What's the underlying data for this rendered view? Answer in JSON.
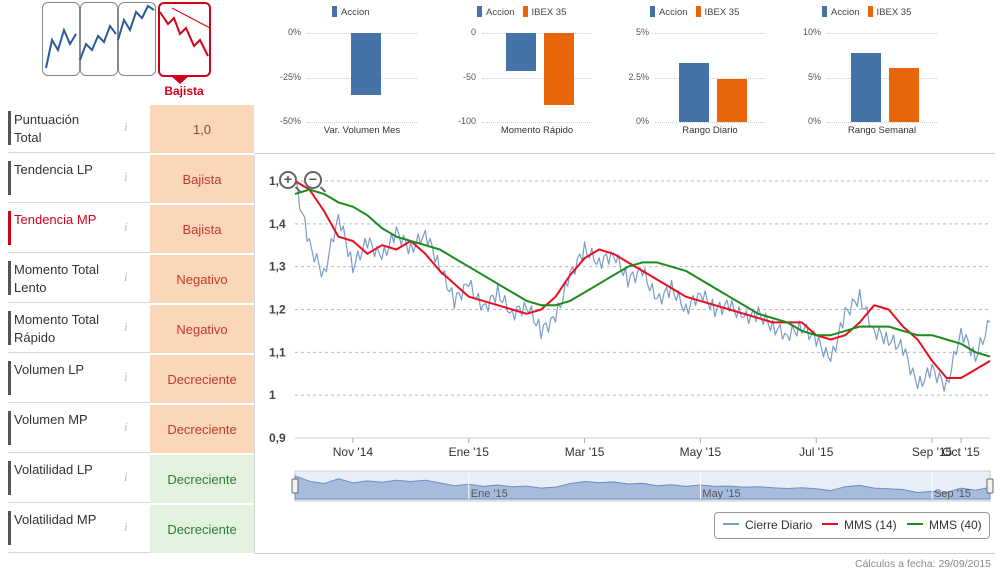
{
  "trend_selector": {
    "selected_label": "Bajista",
    "active_color": "#d0021b"
  },
  "indicators": [
    {
      "label": "Puntuación Total",
      "value": "1,0",
      "color": "orange",
      "highlight": false
    },
    {
      "label": "Tendencia LP",
      "value": "Bajista",
      "color": "orange",
      "highlight": false
    },
    {
      "label": "Tendencia MP",
      "value": "Bajista",
      "color": "orange",
      "highlight": true
    },
    {
      "label": "Momento Total Lento",
      "value": "Negativo",
      "color": "orange",
      "highlight": false
    },
    {
      "label": "Momento Total Rápido",
      "value": "Negativo",
      "color": "orange",
      "highlight": false
    },
    {
      "label": "Volumen LP",
      "value": "Decreciente",
      "color": "orange",
      "highlight": false
    },
    {
      "label": "Volumen MP",
      "value": "Decreciente",
      "color": "orange",
      "highlight": false
    },
    {
      "label": "Volatilidad LP",
      "value": "Decreciente",
      "color": "green",
      "highlight": false
    },
    {
      "label": "Volatilidad MP",
      "value": "Decreciente",
      "color": "green",
      "highlight": false
    }
  ],
  "info_icon": "i",
  "colors": {
    "accion": "#4572a7",
    "ibex": "#e8650c",
    "cierre": "#7b9cc9",
    "mms14": "#e8101f",
    "mms40": "#1a8a1a"
  },
  "chart_data": [
    {
      "type": "bar",
      "title": "",
      "xlabel": "Var. Volumen Mes",
      "series": [
        {
          "name": "Accion",
          "values": [
            -35
          ]
        }
      ],
      "yticks": [
        "0%",
        "-25%",
        "-50%"
      ],
      "ylim": [
        -50,
        0
      ]
    },
    {
      "type": "bar",
      "title": "",
      "xlabel": "Momento Rápido",
      "series": [
        {
          "name": "Accion",
          "values": [
            -43
          ]
        },
        {
          "name": "IBEX 35",
          "values": [
            -81
          ]
        }
      ],
      "yticks": [
        "0",
        "-50",
        "-100"
      ],
      "ylim": [
        -100,
        0
      ]
    },
    {
      "type": "bar",
      "title": "",
      "xlabel": "Rango Diario",
      "series": [
        {
          "name": "Accion",
          "values": [
            3.3
          ]
        },
        {
          "name": "IBEX 35",
          "values": [
            2.4
          ]
        }
      ],
      "yticks": [
        "5%",
        "2.5%",
        "0%"
      ],
      "ylim": [
        0,
        5
      ]
    },
    {
      "type": "bar",
      "title": "",
      "xlabel": "Rango Semanal",
      "series": [
        {
          "name": "Accion",
          "values": [
            7.8
          ]
        },
        {
          "name": "IBEX 35",
          "values": [
            6.1
          ]
        }
      ],
      "yticks": [
        "10%",
        "5%",
        "0%"
      ],
      "ylim": [
        0,
        10
      ]
    },
    {
      "type": "line",
      "title": "",
      "xlabel": "",
      "ylabel": "",
      "ylim": [
        0.9,
        1.5
      ],
      "yticks": [
        "0,9",
        "1",
        "1,1",
        "1,2",
        "1,3",
        "1,4",
        "1,5"
      ],
      "x_tick_labels": [
        "Nov '14",
        "Ene '15",
        "Mar '15",
        "May '15",
        "Jul '15",
        "Sep '15",
        "Oct '15"
      ],
      "x_tick_months": [
        1.0,
        3.0,
        5.0,
        7.0,
        9.0,
        11.0,
        11.5
      ],
      "navigator_labels": [
        "Ene '15",
        "May '15",
        "Sep '15"
      ],
      "navigator_months": [
        3.0,
        7.0,
        11.0
      ],
      "x_range_months": [
        0.0,
        12.0
      ],
      "series": [
        {
          "name": "Cierre Diario",
          "x": [
            0.0,
            0.25,
            0.5,
            0.75,
            1.0,
            1.25,
            1.5,
            1.75,
            2.0,
            2.25,
            2.5,
            2.75,
            3.0,
            3.25,
            3.5,
            3.75,
            4.0,
            4.25,
            4.5,
            4.75,
            5.0,
            5.25,
            5.5,
            5.75,
            6.0,
            6.25,
            6.5,
            6.75,
            7.0,
            7.25,
            7.5,
            7.75,
            8.0,
            8.25,
            8.5,
            8.75,
            9.0,
            9.25,
            9.5,
            9.75,
            10.0,
            10.25,
            10.5,
            10.75,
            11.0,
            11.25,
            11.5,
            11.75,
            12.0
          ],
          "y": [
            1.5,
            1.35,
            1.28,
            1.42,
            1.3,
            1.36,
            1.32,
            1.38,
            1.34,
            1.38,
            1.3,
            1.22,
            1.26,
            1.2,
            1.24,
            1.19,
            1.21,
            1.15,
            1.18,
            1.28,
            1.34,
            1.31,
            1.33,
            1.27,
            1.29,
            1.22,
            1.25,
            1.2,
            1.24,
            1.2,
            1.21,
            1.18,
            1.19,
            1.16,
            1.14,
            1.16,
            1.13,
            1.08,
            1.19,
            1.23,
            1.15,
            1.13,
            1.11,
            1.02,
            1.06,
            1.02,
            1.15,
            1.09,
            1.17
          ]
        },
        {
          "name": "MMS (14)",
          "x": [
            0.0,
            0.25,
            0.5,
            0.75,
            1.0,
            1.25,
            1.5,
            1.75,
            2.0,
            2.25,
            2.5,
            2.75,
            3.0,
            3.25,
            3.5,
            3.75,
            4.0,
            4.25,
            4.5,
            4.75,
            5.0,
            5.25,
            5.5,
            5.75,
            6.0,
            6.25,
            6.5,
            6.75,
            7.0,
            7.25,
            7.5,
            7.75,
            8.0,
            8.25,
            8.5,
            8.75,
            9.0,
            9.25,
            9.5,
            9.75,
            10.0,
            10.25,
            10.5,
            10.75,
            11.0,
            11.25,
            11.5,
            11.75,
            12.0
          ],
          "y": [
            1.5,
            1.48,
            1.43,
            1.37,
            1.36,
            1.33,
            1.35,
            1.34,
            1.36,
            1.33,
            1.29,
            1.26,
            1.23,
            1.22,
            1.21,
            1.2,
            1.19,
            1.2,
            1.23,
            1.28,
            1.32,
            1.34,
            1.33,
            1.31,
            1.29,
            1.27,
            1.25,
            1.23,
            1.22,
            1.21,
            1.2,
            1.19,
            1.18,
            1.17,
            1.17,
            1.17,
            1.14,
            1.13,
            1.14,
            1.17,
            1.21,
            1.2,
            1.16,
            1.13,
            1.08,
            1.04,
            1.04,
            1.06,
            1.08
          ]
        },
        {
          "name": "MMS (40)",
          "x": [
            0.0,
            0.25,
            0.5,
            0.75,
            1.0,
            1.25,
            1.5,
            1.75,
            2.0,
            2.25,
            2.5,
            2.75,
            3.0,
            3.25,
            3.5,
            3.75,
            4.0,
            4.25,
            4.5,
            4.75,
            5.0,
            5.25,
            5.5,
            5.75,
            6.0,
            6.25,
            6.5,
            6.75,
            7.0,
            7.25,
            7.5,
            7.75,
            8.0,
            8.25,
            8.5,
            8.75,
            9.0,
            9.25,
            9.5,
            9.75,
            10.0,
            10.25,
            10.5,
            10.75,
            11.0,
            11.25,
            11.5,
            11.75,
            12.0
          ],
          "y": [
            1.47,
            1.48,
            1.47,
            1.45,
            1.44,
            1.42,
            1.39,
            1.37,
            1.36,
            1.35,
            1.34,
            1.32,
            1.3,
            1.28,
            1.26,
            1.24,
            1.22,
            1.21,
            1.21,
            1.22,
            1.24,
            1.26,
            1.28,
            1.3,
            1.31,
            1.31,
            1.3,
            1.29,
            1.27,
            1.25,
            1.23,
            1.21,
            1.19,
            1.18,
            1.17,
            1.15,
            1.14,
            1.14,
            1.15,
            1.16,
            1.16,
            1.16,
            1.15,
            1.14,
            1.14,
            1.13,
            1.12,
            1.1,
            1.09
          ]
        }
      ],
      "legend_position": "bottom-right"
    }
  ],
  "main_chart_legend": [
    "Cierre Diario",
    "MMS (14)",
    "MMS (40)"
  ],
  "zoom": {
    "in_icon": "+",
    "out_icon": "−"
  },
  "footer": "Cálculos a fecha: 29/09/2015"
}
